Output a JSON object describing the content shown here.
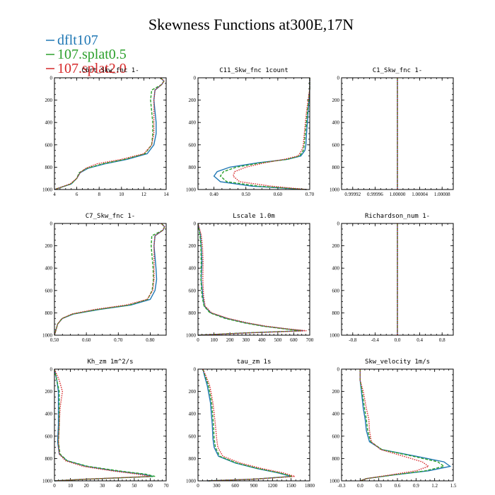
{
  "figure_title": "Skewness Functions at300E,17N",
  "legend": [
    {
      "label": "dflt107",
      "color": "#1f77b4",
      "dash": "solid"
    },
    {
      "label": "107.splat0.5",
      "color": "#2ca02c",
      "dash": "dashed"
    },
    {
      "label": "107.splat2.0",
      "color": "#d62728",
      "dash": "dotted"
    }
  ],
  "chart_data": [
    {
      "type": "line",
      "title": "C6rt_Skw_fnc 1-",
      "xlim": [
        4,
        14
      ],
      "xticks": [
        4,
        6,
        8,
        10,
        12,
        14
      ],
      "xtick_labels": [
        "4",
        "6",
        "8",
        "10",
        "12",
        "14"
      ],
      "ylim": [
        0,
        1000
      ],
      "yticks": [
        0,
        200,
        400,
        600,
        800,
        1000
      ],
      "y_inverted": true,
      "series": [
        {
          "name": "dflt107",
          "x": [
            13.5,
            13.8,
            13.6,
            13.0,
            12.9,
            13.0,
            13.1,
            13.1,
            12.9,
            12.3,
            10.5,
            8.5,
            7.0,
            6.3,
            6.0,
            5.5,
            4.0
          ],
          "y": [
            0,
            30,
            60,
            110,
            200,
            300,
            400,
            500,
            600,
            680,
            730,
            770,
            810,
            850,
            900,
            950,
            1000
          ]
        },
        {
          "name": "107.splat0.5",
          "x": [
            13.5,
            13.8,
            13.6,
            12.7,
            12.6,
            12.7,
            12.8,
            12.8,
            12.7,
            12.1,
            10.3,
            8.3,
            6.9,
            6.2,
            6.0,
            5.5,
            4.0
          ],
          "y": [
            0,
            30,
            60,
            110,
            200,
            300,
            400,
            500,
            600,
            680,
            730,
            770,
            810,
            850,
            900,
            950,
            1000
          ]
        },
        {
          "name": "107.splat2.0",
          "x": [
            13.5,
            13.8,
            13.6,
            13.0,
            12.9,
            12.9,
            12.9,
            12.9,
            12.7,
            12.0,
            10.0,
            7.8,
            6.8,
            6.3,
            6.0,
            5.4,
            4.0
          ],
          "y": [
            0,
            30,
            60,
            110,
            200,
            300,
            400,
            500,
            600,
            680,
            730,
            770,
            810,
            850,
            900,
            950,
            1000
          ]
        }
      ]
    },
    {
      "type": "line",
      "title": "C11_Skw_fnc  1count",
      "xlim": [
        0.35,
        0.7
      ],
      "xticks": [
        0.4,
        0.5,
        0.6,
        0.7
      ],
      "xtick_labels": [
        "0.40",
        "0.50",
        "0.60",
        "0.70"
      ],
      "ylim": [
        0,
        1000
      ],
      "yticks": [
        0,
        200,
        400,
        600,
        800,
        1000
      ],
      "y_inverted": true,
      "series": [
        {
          "name": "dflt107",
          "x": [
            0.7,
            0.7,
            0.695,
            0.69,
            0.688,
            0.685,
            0.672,
            0.63,
            0.54,
            0.45,
            0.41,
            0.4,
            0.42,
            0.52,
            0.69
          ],
          "y": [
            0,
            100,
            300,
            500,
            600,
            650,
            700,
            730,
            760,
            800,
            840,
            880,
            930,
            970,
            1000
          ]
        },
        {
          "name": "107.splat0.5",
          "x": [
            0.7,
            0.7,
            0.693,
            0.686,
            0.683,
            0.68,
            0.668,
            0.63,
            0.55,
            0.47,
            0.43,
            0.42,
            0.44,
            0.54,
            0.69
          ],
          "y": [
            0,
            100,
            300,
            500,
            600,
            650,
            700,
            730,
            760,
            800,
            840,
            880,
            930,
            970,
            1000
          ]
        },
        {
          "name": "107.splat2.0",
          "x": [
            0.7,
            0.7,
            0.69,
            0.683,
            0.68,
            0.675,
            0.663,
            0.62,
            0.56,
            0.5,
            0.465,
            0.46,
            0.48,
            0.58,
            0.69
          ],
          "y": [
            0,
            100,
            300,
            500,
            600,
            650,
            700,
            730,
            760,
            800,
            840,
            880,
            930,
            970,
            1000
          ]
        }
      ]
    },
    {
      "type": "line",
      "title": "C1_Skw_fnc  1-",
      "xlim": [
        0.9999,
        1.0001
      ],
      "xticks": [
        0.99992,
        0.99996,
        1.0,
        1.00004,
        1.00008
      ],
      "xtick_labels": [
        "0.99992",
        "0.99996",
        "1.00000",
        "1.00004",
        "1.00008"
      ],
      "ylim": [
        0,
        1000
      ],
      "yticks": [
        0,
        200,
        400,
        600,
        800,
        1000
      ],
      "y_inverted": true,
      "series": [
        {
          "name": "dflt107",
          "x": [
            1.0,
            1.0
          ],
          "y": [
            0,
            1000
          ]
        },
        {
          "name": "107.splat0.5",
          "x": [
            1.0,
            1.0
          ],
          "y": [
            0,
            1000
          ]
        },
        {
          "name": "107.splat2.0",
          "x": [
            1.0,
            1.0
          ],
          "y": [
            0,
            1000
          ]
        }
      ]
    },
    {
      "type": "line",
      "title": "C7_Skw_fnc  1-",
      "xlim": [
        0.5,
        0.85
      ],
      "xticks": [
        0.5,
        0.6,
        0.7,
        0.8
      ],
      "xtick_labels": [
        "0.50",
        "0.60",
        "0.70",
        "0.80"
      ],
      "ylim": [
        0,
        1000
      ],
      "yticks": [
        0,
        200,
        400,
        600,
        800,
        1000
      ],
      "y_inverted": true,
      "series": [
        {
          "name": "dflt107",
          "x": [
            0.835,
            0.845,
            0.84,
            0.815,
            0.812,
            0.815,
            0.818,
            0.82,
            0.815,
            0.8,
            0.74,
            0.64,
            0.56,
            0.525,
            0.51,
            0.505,
            0.5
          ],
          "y": [
            0,
            30,
            60,
            110,
            200,
            300,
            400,
            500,
            600,
            680,
            730,
            770,
            810,
            850,
            900,
            950,
            1000
          ]
        },
        {
          "name": "107.splat0.5",
          "x": [
            0.835,
            0.845,
            0.84,
            0.805,
            0.803,
            0.806,
            0.809,
            0.81,
            0.806,
            0.792,
            0.735,
            0.635,
            0.558,
            0.524,
            0.51,
            0.505,
            0.5
          ],
          "y": [
            0,
            30,
            60,
            110,
            200,
            300,
            400,
            500,
            600,
            680,
            730,
            770,
            810,
            850,
            900,
            950,
            1000
          ]
        },
        {
          "name": "107.splat2.0",
          "x": [
            0.835,
            0.845,
            0.84,
            0.815,
            0.812,
            0.812,
            0.812,
            0.812,
            0.808,
            0.79,
            0.725,
            0.625,
            0.555,
            0.524,
            0.51,
            0.505,
            0.5
          ],
          "y": [
            0,
            30,
            60,
            110,
            200,
            300,
            400,
            500,
            600,
            680,
            730,
            770,
            810,
            850,
            900,
            950,
            1000
          ]
        }
      ]
    },
    {
      "type": "line",
      "title": "Lscale  1.0m",
      "xlim": [
        0,
        700
      ],
      "xticks": [
        0,
        100,
        200,
        300,
        400,
        500,
        600,
        700
      ],
      "xtick_labels": [
        "0",
        "100",
        "200",
        "300",
        "400",
        "500",
        "600",
        "700"
      ],
      "ylim": [
        0,
        1000
      ],
      "yticks": [
        0,
        200,
        400,
        600,
        800,
        1000
      ],
      "y_inverted": true,
      "series": [
        {
          "name": "dflt107",
          "x": [
            0,
            15,
            20,
            25,
            20,
            30,
            40,
            80,
            180,
            300,
            420,
            560,
            660,
            300,
            0
          ],
          "y": [
            0,
            100,
            200,
            350,
            500,
            650,
            740,
            800,
            850,
            890,
            920,
            945,
            960,
            980,
            1000
          ]
        },
        {
          "name": "107.splat0.5",
          "x": [
            0,
            12,
            18,
            20,
            18,
            25,
            38,
            75,
            170,
            290,
            410,
            550,
            650,
            290,
            0
          ],
          "y": [
            0,
            100,
            200,
            350,
            500,
            650,
            740,
            800,
            850,
            890,
            920,
            945,
            960,
            980,
            1000
          ]
        },
        {
          "name": "107.splat2.0",
          "x": [
            0,
            20,
            28,
            32,
            30,
            35,
            45,
            85,
            190,
            310,
            430,
            570,
            680,
            310,
            0
          ],
          "y": [
            0,
            100,
            200,
            350,
            500,
            650,
            740,
            800,
            850,
            890,
            920,
            945,
            960,
            980,
            1000
          ]
        }
      ]
    },
    {
      "type": "line",
      "title": "Richardson_num  1-",
      "xlim": [
        -1.0,
        1.0
      ],
      "xticks": [
        -0.8,
        -0.4,
        0.0,
        0.4,
        0.8
      ],
      "xtick_labels": [
        "-0.8",
        "-0.4",
        "0.0",
        "0.4",
        "0.8"
      ],
      "ylim": [
        0,
        1000
      ],
      "yticks": [
        0,
        200,
        400,
        600,
        800,
        1000
      ],
      "y_inverted": true,
      "series": [
        {
          "name": "dflt107",
          "x": [
            0,
            0
          ],
          "y": [
            0,
            1000
          ]
        },
        {
          "name": "107.splat0.5",
          "x": [
            0,
            0
          ],
          "y": [
            0,
            1000
          ]
        },
        {
          "name": "107.splat2.0",
          "x": [
            0,
            0
          ],
          "y": [
            0,
            1000
          ]
        }
      ]
    },
    {
      "type": "line",
      "title": "Kh_zm   1m^2/s",
      "xlim": [
        0,
        70
      ],
      "xticks": [
        0,
        10,
        20,
        30,
        40,
        50,
        60,
        70
      ],
      "xtick_labels": [
        "0",
        "10",
        "20",
        "30",
        "40",
        "50",
        "60",
        "70"
      ],
      "ylim": [
        0,
        1000
      ],
      "yticks": [
        0,
        200,
        400,
        600,
        800,
        1000
      ],
      "y_inverted": true,
      "series": [
        {
          "name": "dflt107",
          "x": [
            0,
            1.5,
            2.5,
            2.5,
            2.5,
            2,
            3,
            8,
            20,
            38,
            55,
            62,
            20,
            0
          ],
          "y": [
            0,
            100,
            200,
            350,
            500,
            650,
            760,
            820,
            870,
            910,
            940,
            960,
            985,
            1000
          ]
        },
        {
          "name": "107.splat0.5",
          "x": [
            0,
            1.5,
            3,
            3,
            3,
            2.5,
            3.5,
            8,
            21,
            40,
            57,
            63,
            20,
            0
          ],
          "y": [
            0,
            100,
            200,
            350,
            500,
            650,
            760,
            820,
            870,
            910,
            940,
            960,
            985,
            1000
          ]
        },
        {
          "name": "107.splat2.0",
          "x": [
            0,
            3,
            5,
            3.5,
            3,
            2.5,
            3,
            7,
            18,
            36,
            52,
            60,
            20,
            0
          ],
          "y": [
            0,
            100,
            200,
            350,
            500,
            650,
            760,
            820,
            870,
            910,
            940,
            960,
            985,
            1000
          ]
        }
      ]
    },
    {
      "type": "line",
      "title": "tau_zm   1s",
      "xlim": [
        0,
        1800
      ],
      "xticks": [
        0,
        300,
        600,
        900,
        1200,
        1500,
        1800
      ],
      "xtick_labels": [
        "0",
        "300",
        "600",
        "900",
        "1200",
        "1500",
        "1800"
      ],
      "ylim": [
        0,
        1000
      ],
      "yticks": [
        0,
        200,
        400,
        600,
        800,
        1000
      ],
      "y_inverted": true,
      "series": [
        {
          "name": "dflt107",
          "x": [
            80,
            100,
            150,
            200,
            230,
            240,
            260,
            330,
            600,
            950,
            1300,
            1500,
            900,
            150
          ],
          "y": [
            0,
            50,
            150,
            300,
            500,
            620,
            700,
            780,
            840,
            890,
            930,
            960,
            985,
            1000
          ]
        },
        {
          "name": "107.splat0.5",
          "x": [
            80,
            110,
            170,
            220,
            250,
            260,
            280,
            350,
            620,
            970,
            1320,
            1520,
            900,
            150
          ],
          "y": [
            0,
            50,
            150,
            300,
            500,
            620,
            700,
            780,
            840,
            890,
            930,
            960,
            985,
            1000
          ]
        },
        {
          "name": "107.splat2.0",
          "x": [
            80,
            120,
            190,
            240,
            280,
            300,
            320,
            400,
            680,
            1030,
            1380,
            1560,
            900,
            150
          ],
          "y": [
            0,
            50,
            150,
            300,
            500,
            620,
            700,
            780,
            840,
            890,
            930,
            960,
            985,
            1000
          ]
        }
      ]
    },
    {
      "type": "line",
      "title": "Skw_velocity   1m/s",
      "xlim": [
        -0.3,
        1.5
      ],
      "xticks": [
        -0.3,
        0.0,
        0.3,
        0.6,
        0.9,
        1.2,
        1.5
      ],
      "xtick_labels": [
        "-0.3",
        "0.0",
        "0.3",
        "0.6",
        "0.9",
        "1.2",
        "1.5"
      ],
      "ylim": [
        0,
        1000
      ],
      "yticks": [
        0,
        200,
        400,
        600,
        800,
        1000
      ],
      "y_inverted": true,
      "series": [
        {
          "name": "dflt107",
          "x": [
            0,
            0,
            0.02,
            0.05,
            0.08,
            0.1,
            0.15,
            0.35,
            0.9,
            1.35,
            1.45,
            1.1,
            0.5,
            0.1,
            0
          ],
          "y": [
            0,
            100,
            200,
            350,
            450,
            550,
            650,
            720,
            780,
            830,
            870,
            910,
            950,
            980,
            1000
          ]
        },
        {
          "name": "107.splat0.5",
          "x": [
            0,
            0,
            0.03,
            0.07,
            0.1,
            0.12,
            0.17,
            0.35,
            0.85,
            1.25,
            1.35,
            1.05,
            0.5,
            0.1,
            0
          ],
          "y": [
            0,
            100,
            200,
            350,
            450,
            550,
            650,
            720,
            780,
            830,
            870,
            910,
            950,
            980,
            1000
          ]
        },
        {
          "name": "107.splat2.0",
          "x": [
            0,
            0,
            0.05,
            0.1,
            0.14,
            0.15,
            0.18,
            0.33,
            0.7,
            1.0,
            1.1,
            0.9,
            0.45,
            0.1,
            0
          ],
          "y": [
            0,
            100,
            200,
            350,
            450,
            550,
            650,
            720,
            780,
            830,
            870,
            910,
            950,
            980,
            1000
          ]
        }
      ]
    }
  ]
}
